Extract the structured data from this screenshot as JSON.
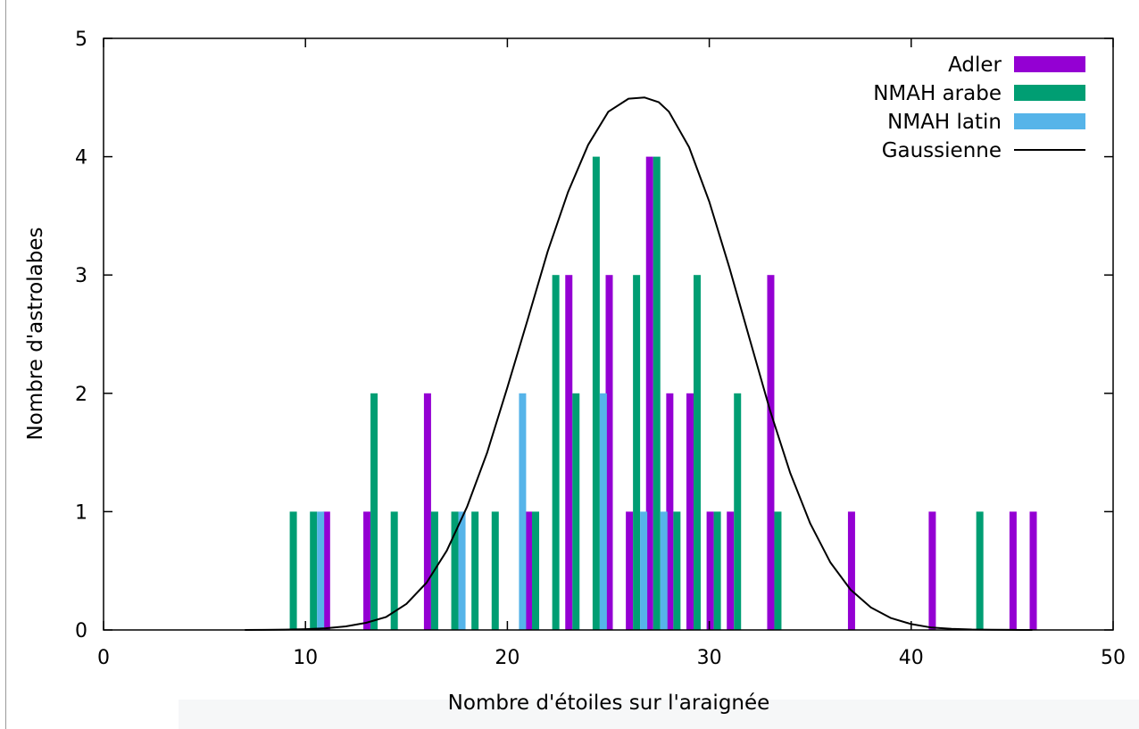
{
  "chart_data": {
    "type": "bar",
    "xlabel": "Nombre d'étoiles sur l'araignée",
    "ylabel": "Nombre d'astrolabes",
    "xlim": [
      0,
      50
    ],
    "ylim": [
      0,
      5
    ],
    "xticks": [
      0,
      10,
      20,
      30,
      40,
      50
    ],
    "yticks": [
      0,
      1,
      2,
      3,
      4,
      5
    ],
    "grid": false,
    "legend_position": "top-right",
    "series": [
      {
        "name": "Adler",
        "kind": "bar",
        "color": "#9400d3",
        "x": [
          11,
          13,
          16,
          21,
          23,
          25,
          26,
          27,
          28,
          29,
          30,
          31,
          33,
          37,
          41,
          45,
          46
        ],
        "values": [
          1,
          1,
          2,
          1,
          3,
          3,
          1,
          4,
          2,
          2,
          1,
          1,
          3,
          1,
          1,
          1,
          1
        ]
      },
      {
        "name": "NMAH arabe",
        "kind": "bar",
        "color": "#009e73",
        "x": [
          9,
          10,
          13,
          14,
          16,
          17,
          18,
          19,
          21,
          22,
          23,
          24,
          26,
          27,
          28,
          29,
          30,
          31,
          33,
          43
        ],
        "values": [
          1,
          1,
          2,
          1,
          1,
          1,
          1,
          1,
          1,
          3,
          2,
          4,
          3,
          4,
          1,
          3,
          1,
          2,
          1,
          1
        ]
      },
      {
        "name": "NMAH latin",
        "kind": "bar",
        "color": "#56b4e9",
        "x": [
          10,
          17,
          20,
          24,
          26,
          27
        ],
        "values": [
          1,
          1,
          2,
          2,
          1,
          1
        ]
      },
      {
        "name": "Gaussienne",
        "kind": "line",
        "color": "#000000",
        "x": [
          7,
          8,
          9,
          10,
          11,
          12,
          13,
          14,
          15,
          16,
          17,
          18,
          19,
          20,
          21,
          22,
          23,
          24,
          25,
          26,
          26.8,
          27.5,
          28,
          29,
          30,
          31,
          32,
          33,
          34,
          35,
          36,
          37,
          38,
          39,
          40,
          41,
          42,
          43,
          44,
          45,
          46
        ],
        "values": [
          0.0,
          0.001,
          0.003,
          0.007,
          0.014,
          0.03,
          0.06,
          0.11,
          0.22,
          0.4,
          0.67,
          1.04,
          1.5,
          2.05,
          2.62,
          3.2,
          3.7,
          4.1,
          4.38,
          4.49,
          4.5,
          4.46,
          4.38,
          4.08,
          3.62,
          3.06,
          2.46,
          1.86,
          1.33,
          0.9,
          0.57,
          0.34,
          0.19,
          0.1,
          0.05,
          0.02,
          0.01,
          0.004,
          0.002,
          0.001,
          0.0
        ]
      }
    ]
  }
}
